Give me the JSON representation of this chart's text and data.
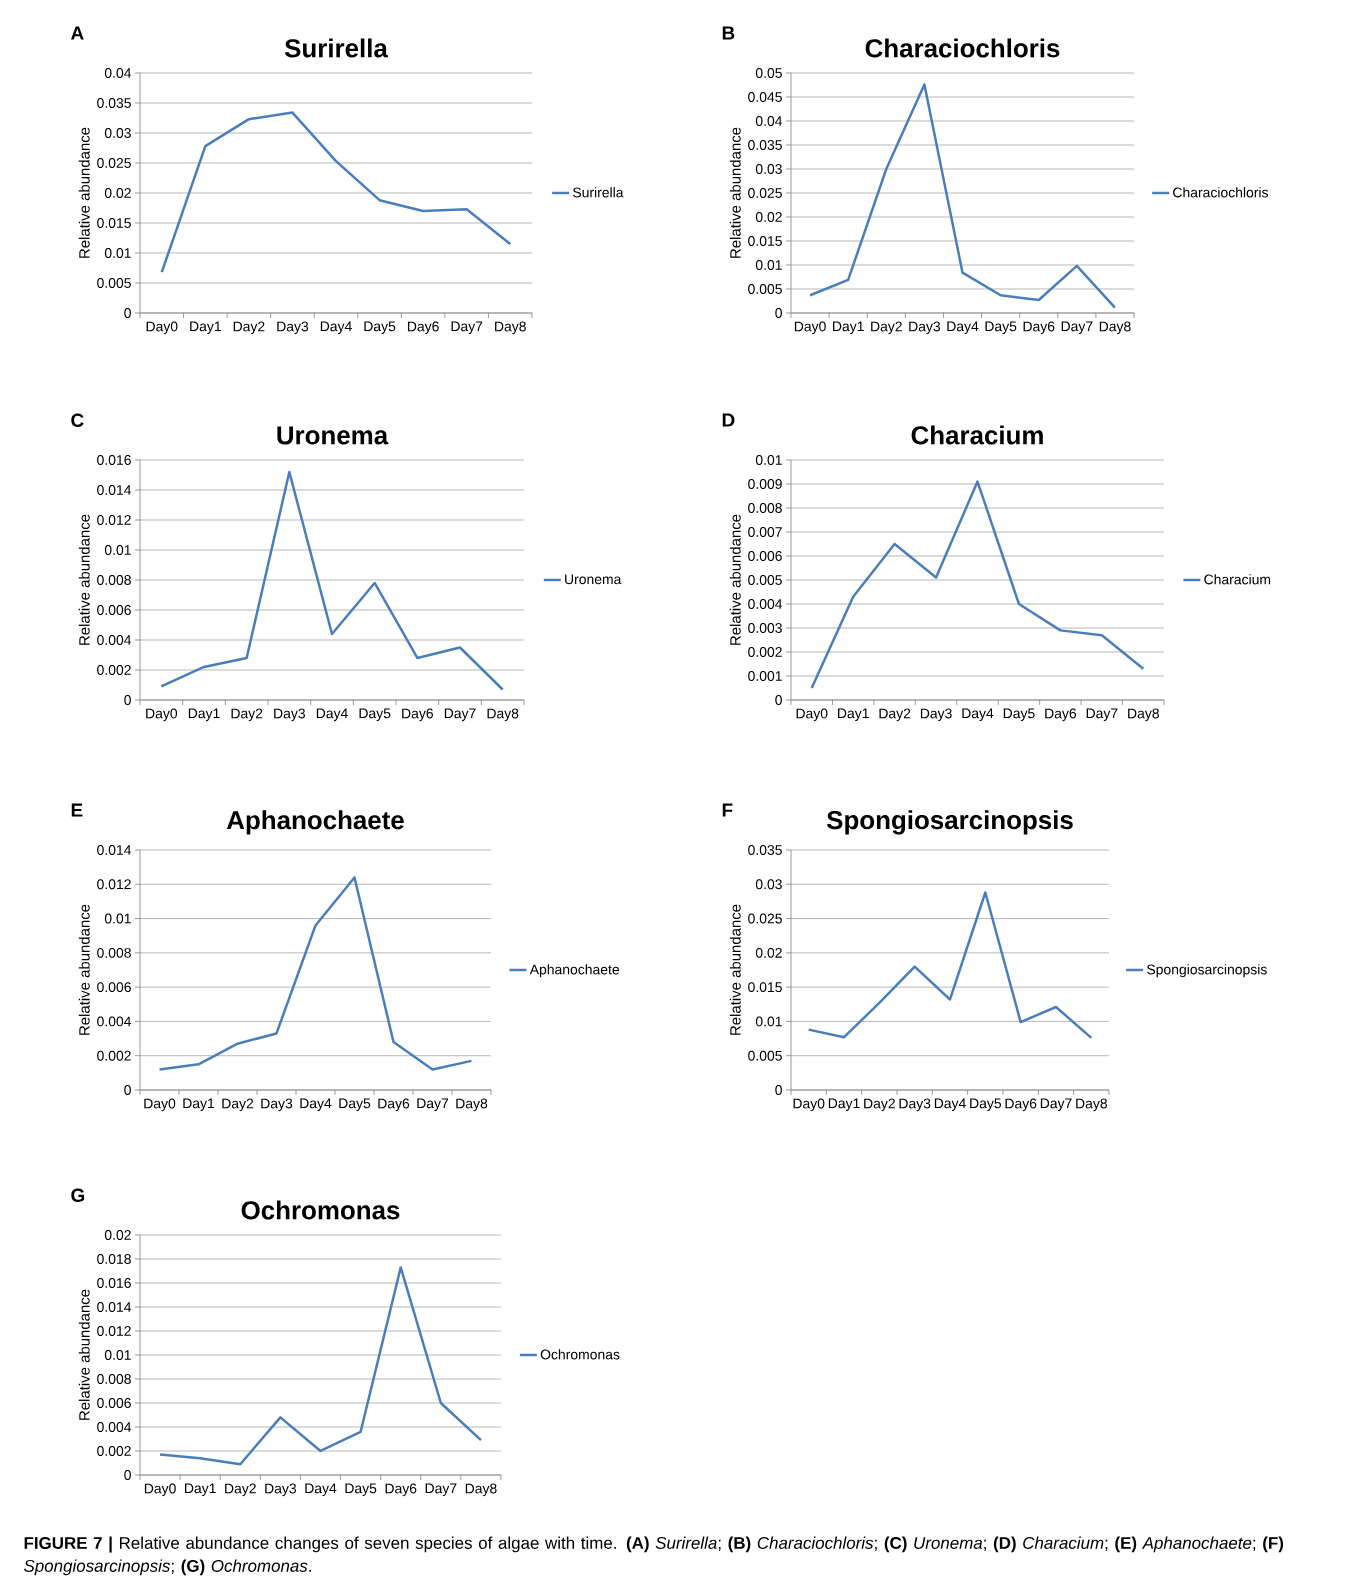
{
  "chart_data": [
    {
      "type": "line",
      "title": "Surirella",
      "ylabel": "Relative abundance",
      "categories": [
        "Day0",
        "Day1",
        "Day2",
        "Day3",
        "Day4",
        "Day5",
        "Day6",
        "Day7",
        "Day8"
      ],
      "series": [
        {
          "name": "Surirella",
          "color": "#4a7ebb",
          "values": [
            0.0068,
            0.0278,
            0.0323,
            0.0334,
            0.0253,
            0.0188,
            0.017,
            0.0173,
            0.0115
          ]
        }
      ],
      "ylim": [
        0,
        0.04
      ],
      "yticks": [
        0,
        0.005,
        0.01,
        0.015,
        0.02,
        0.025,
        0.03,
        0.035,
        0.04
      ],
      "grid": "y",
      "legend": "right",
      "annotations": [
        "A"
      ]
    },
    {
      "type": "line",
      "title": "Characiochloris",
      "ylabel": "Relative abundance",
      "categories": [
        "Day0",
        "Day1",
        "Day2",
        "Day3",
        "Day4",
        "Day5",
        "Day6",
        "Day7",
        "Day8"
      ],
      "series": [
        {
          "name": "Characiochloris",
          "color": "#4a7ebb",
          "values": [
            0.0037,
            0.0069,
            0.03,
            0.0476,
            0.0084,
            0.0037,
            0.0027,
            0.0098,
            0.0011
          ]
        }
      ],
      "ylim": [
        0,
        0.05
      ],
      "yticks": [
        0,
        0.005,
        0.01,
        0.015,
        0.02,
        0.025,
        0.03,
        0.035,
        0.04,
        0.045,
        0.05
      ],
      "grid": "y",
      "legend": "right",
      "annotations": [
        "B"
      ]
    },
    {
      "type": "line",
      "title": "Uronema",
      "ylabel": "Relative abundance",
      "categories": [
        "Day0",
        "Day1",
        "Day2",
        "Day3",
        "Day4",
        "Day5",
        "Day6",
        "Day7",
        "Day8"
      ],
      "series": [
        {
          "name": "Uronema",
          "color": "#4a7ebb",
          "values": [
            0.0009,
            0.0022,
            0.0028,
            0.0152,
            0.0044,
            0.0078,
            0.0028,
            0.0035,
            0.0007
          ]
        }
      ],
      "ylim": [
        0,
        0.016
      ],
      "yticks": [
        0,
        0.002,
        0.004,
        0.006,
        0.008,
        0.01,
        0.012,
        0.014,
        0.016
      ],
      "grid": "y",
      "legend": "right",
      "annotations": [
        "C"
      ]
    },
    {
      "type": "line",
      "title": "Characium",
      "ylabel": "Relative abundance",
      "categories": [
        "Day0",
        "Day1",
        "Day2",
        "Day3",
        "Day4",
        "Day5",
        "Day6",
        "Day7",
        "Day8"
      ],
      "series": [
        {
          "name": "Characium",
          "color": "#4a7ebb",
          "values": [
            0.0005,
            0.0043,
            0.0065,
            0.0051,
            0.0091,
            0.004,
            0.0029,
            0.0027,
            0.0013
          ]
        }
      ],
      "ylim": [
        0,
        0.01
      ],
      "yticks": [
        0,
        0.001,
        0.002,
        0.003,
        0.004,
        0.005,
        0.006,
        0.007,
        0.008,
        0.009,
        0.01
      ],
      "grid": "y",
      "legend": "right",
      "annotations": [
        "D"
      ]
    },
    {
      "type": "line",
      "title": "Aphanochaete",
      "ylabel": "Relative abundance",
      "categories": [
        "Day0",
        "Day1",
        "Day2",
        "Day3",
        "Day4",
        "Day5",
        "Day6",
        "Day7",
        "Day8"
      ],
      "series": [
        {
          "name": "Aphanochaete",
          "color": "#4a7ebb",
          "values": [
            0.0012,
            0.0015,
            0.0027,
            0.0033,
            0.0096,
            0.0124,
            0.0028,
            0.0012,
            0.0017
          ]
        }
      ],
      "ylim": [
        0,
        0.014
      ],
      "yticks": [
        0,
        0.002,
        0.004,
        0.006,
        0.008,
        0.01,
        0.012,
        0.014
      ],
      "grid": "y",
      "legend": "right",
      "annotations": [
        "E"
      ]
    },
    {
      "type": "line",
      "title": "Spongiosarcinopsis",
      "ylabel": "Relative abundance",
      "categories": [
        "Day0",
        "Day1",
        "Day2",
        "Day3",
        "Day4",
        "Day5",
        "Day6",
        "Day7",
        "Day8"
      ],
      "series": [
        {
          "name": "Spongiosarcinopsis",
          "color": "#4a7ebb",
          "values": [
            0.0088,
            0.0077,
            0.0127,
            0.018,
            0.0132,
            0.0288,
            0.0099,
            0.0121,
            0.0076
          ]
        }
      ],
      "ylim": [
        0,
        0.035
      ],
      "yticks": [
        0,
        0.005,
        0.01,
        0.015,
        0.02,
        0.025,
        0.03,
        0.035
      ],
      "grid": "y",
      "legend": "right",
      "annotations": [
        "F"
      ]
    },
    {
      "type": "line",
      "title": "Ochromonas",
      "ylabel": "Relative abundance",
      "categories": [
        "Day0",
        "Day1",
        "Day2",
        "Day3",
        "Day4",
        "Day5",
        "Day6",
        "Day7",
        "Day8"
      ],
      "series": [
        {
          "name": "Ochromonas",
          "color": "#4a7ebb",
          "values": [
            0.0017,
            0.0014,
            0.0009,
            0.0048,
            0.002,
            0.0036,
            0.0173,
            0.006,
            0.0029
          ]
        }
      ],
      "ylim": [
        0,
        0.02
      ],
      "yticks": [
        0,
        0.002,
        0.004,
        0.006,
        0.008,
        0.01,
        0.012,
        0.014,
        0.016,
        0.018,
        0.02
      ],
      "grid": "y",
      "legend": "right",
      "annotations": [
        "G",
        "**FIGURE 7 |** Relative abundance changes of seven species of algae with time. **(A)** *Surirella*; **(B)** *Characiochloris*; **(C)** *Uronema*; **(D)** *Characium*; **(E)** *Aphanochaete*; **(F)** *Spongiosarcinopsis*; **(G)** *Ochromonas*."
      ]
    }
  ]
}
